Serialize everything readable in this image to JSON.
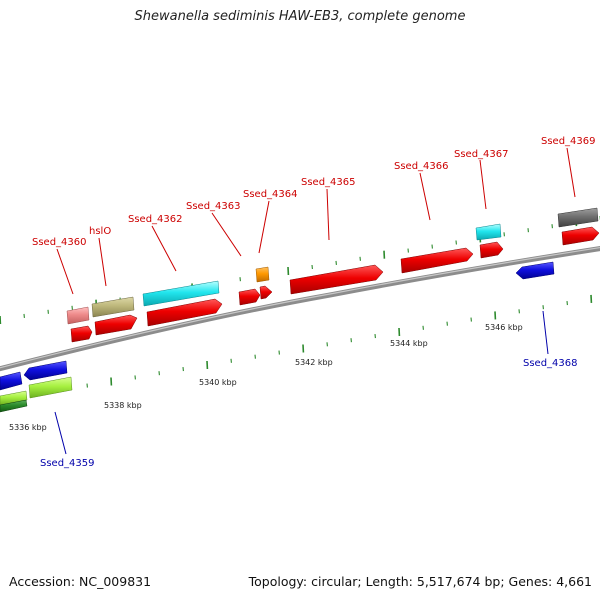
{
  "title": "Shewanella sediminis HAW-EB3, complete genome",
  "footer": {
    "accession": "Accession: NC_009831",
    "summary": "Topology: circular; Length: 5,517,674 bp; Genes: 4,661"
  },
  "colors": {
    "backbone": "#8c8c8c",
    "tick": "#2d8a2d",
    "label_forward": "#cc0000",
    "label_reverse": "#0000aa"
  },
  "scale_labels": [
    "5336 kbp",
    "5338 kbp",
    "5340 kbp",
    "5342 kbp",
    "5344 kbp",
    "5346 kbp"
  ],
  "gene_labels": [
    {
      "text": "Ssed_4359",
      "strand": "reverse"
    },
    {
      "text": "Ssed_4360",
      "strand": "forward"
    },
    {
      "text": "hslO",
      "strand": "forward"
    },
    {
      "text": "Ssed_4362",
      "strand": "forward"
    },
    {
      "text": "Ssed_4363",
      "strand": "forward"
    },
    {
      "text": "Ssed_4364",
      "strand": "forward"
    },
    {
      "text": "Ssed_4365",
      "strand": "forward"
    },
    {
      "text": "Ssed_4366",
      "strand": "forward"
    },
    {
      "text": "Ssed_4367",
      "strand": "forward"
    },
    {
      "text": "Ssed_4368",
      "strand": "reverse"
    },
    {
      "text": "Ssed_4369",
      "strand": "forward"
    }
  ]
}
